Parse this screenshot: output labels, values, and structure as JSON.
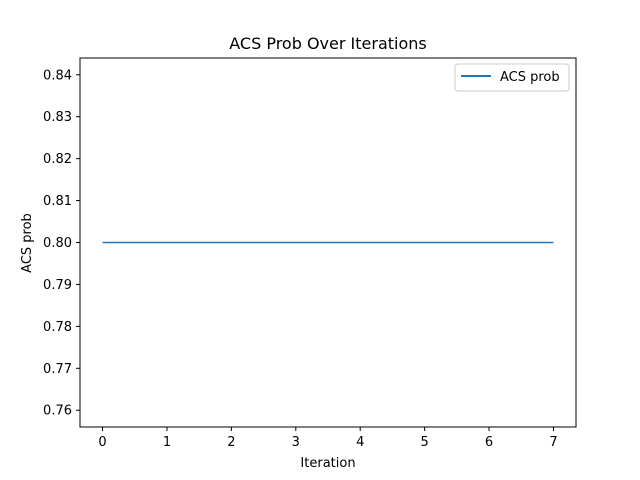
{
  "chart_data": {
    "type": "line",
    "title": "ACS Prob Over Iterations",
    "xlabel": "Iteration",
    "ylabel": "ACS prob",
    "x": [
      0,
      1,
      2,
      3,
      4,
      5,
      6,
      7
    ],
    "series": [
      {
        "name": "ACS prob",
        "values": [
          0.8,
          0.8,
          0.8,
          0.8,
          0.8,
          0.8,
          0.8,
          0.8
        ],
        "color": "#1f77b4"
      }
    ],
    "xlim": [
      -0.35,
      7.35
    ],
    "ylim": [
      0.756,
      0.844
    ],
    "xticks": [
      0,
      1,
      2,
      3,
      4,
      5,
      6,
      7
    ],
    "yticks": [
      0.76,
      0.77,
      0.78,
      0.79,
      0.8,
      0.81,
      0.82,
      0.83,
      0.84
    ],
    "ytick_labels": [
      "0.76",
      "0.77",
      "0.78",
      "0.79",
      "0.80",
      "0.81",
      "0.82",
      "0.83",
      "0.84"
    ],
    "grid": false,
    "legend_position": "top-right"
  }
}
